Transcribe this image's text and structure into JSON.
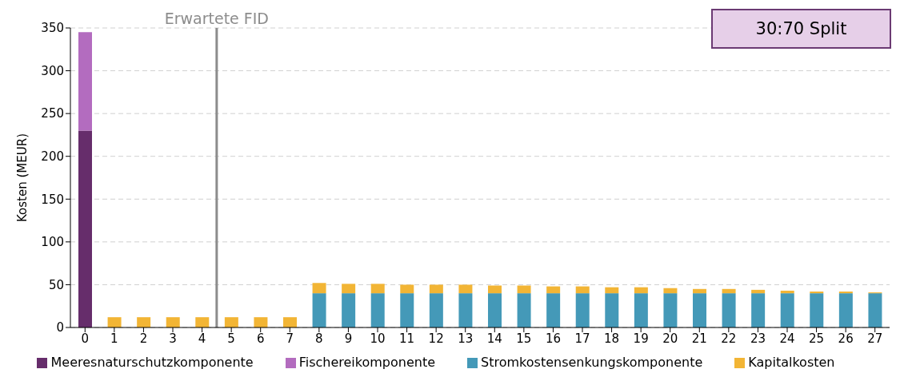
{
  "chart_data": {
    "type": "bar",
    "stacked": true,
    "ylabel": "Kosten (MEUR)",
    "x": [
      0,
      1,
      2,
      3,
      4,
      5,
      6,
      7,
      8,
      9,
      10,
      11,
      12,
      13,
      14,
      15,
      16,
      17,
      18,
      19,
      20,
      21,
      22,
      23,
      24,
      25,
      26,
      27
    ],
    "xlim": [
      -0.5,
      27.5
    ],
    "xticks": [
      0,
      1,
      2,
      3,
      4,
      5,
      6,
      7,
      8,
      9,
      10,
      11,
      12,
      13,
      14,
      15,
      16,
      17,
      18,
      19,
      20,
      21,
      22,
      23,
      24,
      25,
      26,
      27
    ],
    "ylim": [
      0,
      350
    ],
    "yticks": [
      0,
      50,
      100,
      150,
      200,
      250,
      300,
      350
    ],
    "grid": "y",
    "legend": "bottom",
    "series": [
      {
        "name": "Meeresnaturschutzkomponente",
        "color": "#662d6b",
        "values": [
          230,
          null,
          null,
          null,
          null,
          null,
          null,
          null,
          null,
          null,
          null,
          null,
          null,
          null,
          null,
          null,
          null,
          null,
          null,
          null,
          null,
          null,
          null,
          null,
          null,
          null,
          null,
          null
        ]
      },
      {
        "name": "Fischereikomponente",
        "color": "#b36cbf",
        "values": [
          115,
          null,
          null,
          null,
          null,
          null,
          null,
          null,
          null,
          null,
          null,
          null,
          null,
          null,
          null,
          null,
          null,
          null,
          null,
          null,
          null,
          null,
          null,
          null,
          null,
          null,
          null,
          null
        ]
      },
      {
        "name": "Stromkostensenkungskomponente",
        "color": "#4499b8",
        "values": [
          null,
          null,
          null,
          null,
          null,
          null,
          null,
          null,
          40,
          40,
          40,
          40,
          40,
          40,
          40,
          40,
          40,
          40,
          40,
          40,
          40,
          40,
          40,
          40,
          40,
          40,
          40,
          40
        ]
      },
      {
        "name": "Kapitalkosten",
        "color": "#f2b535",
        "values": [
          null,
          12,
          12,
          12,
          12,
          12,
          12,
          12,
          12,
          11,
          11,
          10,
          10,
          10,
          9,
          9,
          8,
          8,
          7,
          7,
          6,
          5,
          5,
          4,
          3,
          2,
          2,
          1
        ]
      }
    ],
    "ref_lines": [
      {
        "axis": "x",
        "value": 4.5,
        "label": "Erwartete FID",
        "color": "#8c8c8c"
      }
    ],
    "annotations": [
      "30:70 Split"
    ]
  }
}
